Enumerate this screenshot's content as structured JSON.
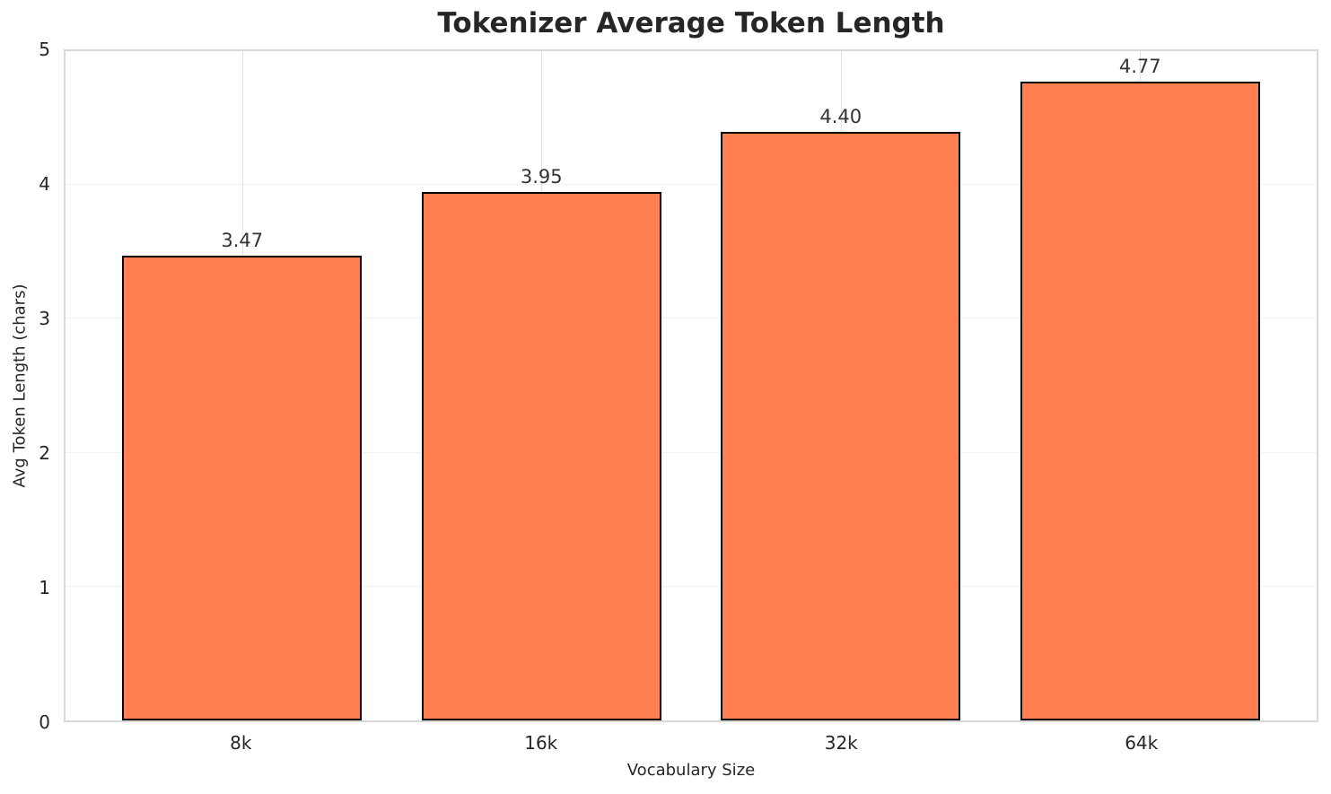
{
  "chart_data": {
    "type": "bar",
    "title": "Tokenizer Average Token Length",
    "categories": [
      "8k",
      "16k",
      "32k",
      "64k"
    ],
    "values": [
      3.47,
      3.95,
      4.4,
      4.77
    ],
    "value_labels": [
      "3.47",
      "3.95",
      "4.40",
      "4.77"
    ],
    "xlabel": "Vocabulary Size",
    "ylabel": "Avg Token Length (chars)",
    "ylim": [
      0,
      5
    ],
    "yticks": [
      0,
      1,
      2,
      3,
      4,
      5
    ],
    "grid": true,
    "legend_position": "none",
    "bar_color": "#FF7F50",
    "bar_edge_color": "#000000"
  },
  "colors": {
    "background": "#ffffff",
    "title_text": "#262626",
    "tick_text": "#262626",
    "value_label_text": "#333333",
    "grid_horizontal": "#f0f0f0",
    "grid_vertical": "#e0e0e0",
    "spine": "#d9d9d9"
  }
}
